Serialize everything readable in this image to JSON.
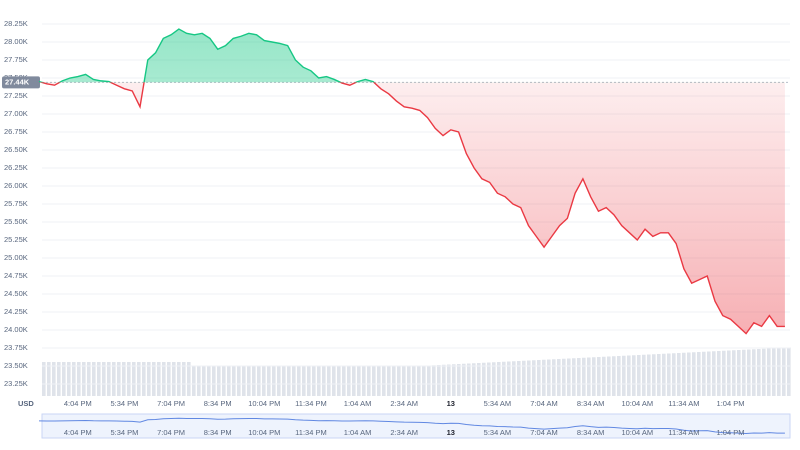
{
  "chart_data": {
    "type": "line",
    "categories": [
      null,
      null,
      null,
      null,
      null,
      "4:04 PM",
      null,
      null,
      null,
      null,
      null,
      "5:34 PM",
      null,
      null,
      null,
      null,
      null,
      "7:04 PM",
      null,
      null,
      null,
      null,
      null,
      "8:34 PM",
      null,
      null,
      null,
      null,
      null,
      "10:04 PM",
      null,
      null,
      null,
      null,
      null,
      "11:34 PM",
      null,
      null,
      null,
      null,
      null,
      "1:04 AM",
      null,
      null,
      null,
      null,
      null,
      "2:34 AM",
      null,
      null,
      null,
      null,
      null,
      "13",
      null,
      null,
      null,
      null,
      null,
      "5:34 AM",
      null,
      null,
      null,
      null,
      null,
      "7:04 AM",
      null,
      null,
      null,
      null,
      null,
      "8:34 AM",
      null,
      null,
      null,
      null,
      null,
      "10:04 AM",
      null,
      null,
      null,
      null,
      null,
      "11:34 AM",
      null,
      null,
      null,
      null,
      null,
      "1:04 PM",
      null,
      null,
      null,
      null,
      null,
      null,
      null
    ],
    "values": [
      27450,
      27420,
      27400,
      27460,
      27500,
      27520,
      27550,
      27480,
      27460,
      27450,
      27400,
      27350,
      27320,
      27100,
      27750,
      27850,
      28050,
      28100,
      28180,
      28120,
      28100,
      28120,
      28050,
      27900,
      27950,
      28050,
      28080,
      28120,
      28100,
      28020,
      28000,
      27980,
      27950,
      27750,
      27650,
      27600,
      27500,
      27520,
      27480,
      27430,
      27400,
      27450,
      27480,
      27450,
      27350,
      27280,
      27180,
      27100,
      27080,
      27050,
      26950,
      26800,
      26700,
      26780,
      26750,
      26450,
      26250,
      26100,
      26050,
      25900,
      25850,
      25750,
      25700,
      25450,
      25300,
      25150,
      25300,
      25450,
      25550,
      25900,
      26100,
      25850,
      25650,
      25700,
      25600,
      25450,
      25350,
      25250,
      25400,
      25300,
      25350,
      25350,
      25200,
      24850,
      24650,
      24700,
      24750,
      24400,
      24200,
      24150,
      24050,
      23950,
      24100,
      24050,
      24200,
      24050,
      24050
    ],
    "up_color": "#16c784",
    "down_color": "#ea3943",
    "baseline": {
      "value": 27440,
      "label": "27.44K"
    },
    "currency": "USD",
    "ylim": [
      23250,
      28250
    ],
    "yticks": [
      {
        "value": 23250,
        "label": "23.25K"
      },
      {
        "value": 23500,
        "label": "23.50K"
      },
      {
        "value": 23750,
        "label": "23.75K"
      },
      {
        "value": 24000,
        "label": "24.00K"
      },
      {
        "value": 24250,
        "label": "24.25K"
      },
      {
        "value": 24500,
        "label": "24.50K"
      },
      {
        "value": 24750,
        "label": "24.75K"
      },
      {
        "value": 25000,
        "label": "25.00K"
      },
      {
        "value": 25250,
        "label": "25.25K"
      },
      {
        "value": 25500,
        "label": "25.50K"
      },
      {
        "value": 25750,
        "label": "25.75K"
      },
      {
        "value": 26000,
        "label": "26.00K"
      },
      {
        "value": 26250,
        "label": "26.25K"
      },
      {
        "value": 26500,
        "label": "26.50K"
      },
      {
        "value": 26750,
        "label": "26.75K"
      },
      {
        "value": 27000,
        "label": "27.00K"
      },
      {
        "value": 27250,
        "label": "27.25K"
      },
      {
        "value": 27500,
        "label": "27.50K"
      },
      {
        "value": 27750,
        "label": "27.75K"
      },
      {
        "value": 28000,
        "label": "28.00K"
      },
      {
        "value": 28250,
        "label": "28.25K"
      }
    ],
    "grid": true
  }
}
